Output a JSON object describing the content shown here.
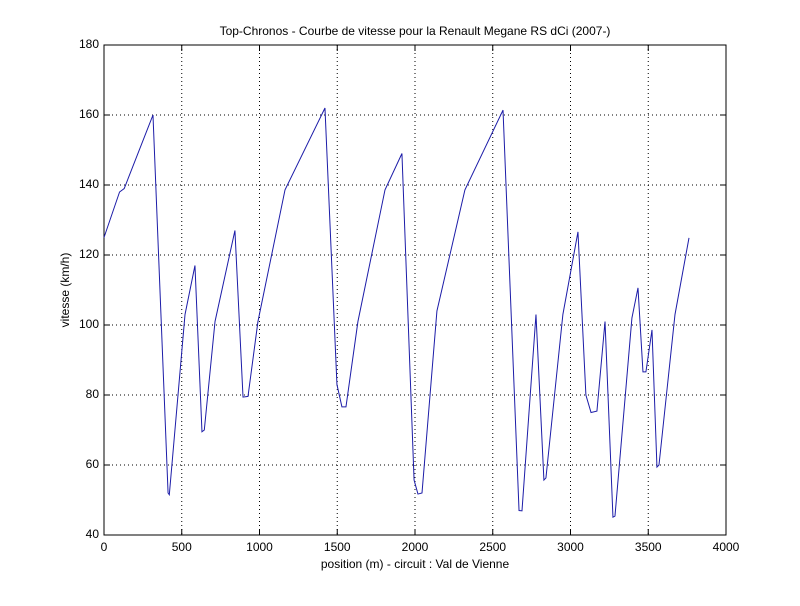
{
  "chart_data": {
    "type": "line",
    "title": "Top-Chronos - Courbe de vitesse pour la Renault Megane RS dCi (2007-)",
    "x_label": "position (m) - circuit : Val de Vienne",
    "y_label": "vitesse (km/h)",
    "x": [
      0,
      100,
      130,
      315,
      412,
      420,
      521,
      585,
      630,
      645,
      714,
      842,
      894,
      926,
      990,
      1164,
      1421,
      1498,
      1530,
      1556,
      1633,
      1807,
      1916,
      1994,
      2019,
      2045,
      2141,
      2321,
      2566,
      2669,
      2688,
      2778,
      2829,
      2842,
      2951,
      3048,
      3099,
      3132,
      3170,
      3222,
      3273,
      3286,
      3395,
      3434,
      3466,
      3485,
      3524,
      3556,
      3569,
      3672,
      3762
    ],
    "series": [
      {
        "name": "vitesse",
        "color": "#1c1ca8",
        "values": [
          125,
          138,
          139,
          160,
          52,
          51.5,
          103,
          117,
          69.5,
          70,
          101,
          127,
          79.4,
          79.6,
          101,
          138.6,
          162,
          83,
          76.6,
          76.6,
          101,
          138.6,
          149,
          55.7,
          51.7,
          52,
          104,
          138.6,
          161.4,
          47,
          46.9,
          103,
          55.7,
          56.3,
          103,
          126.6,
          80,
          75,
          75.4,
          101,
          45.1,
          45.4,
          102,
          110.6,
          86.6,
          86.6,
          98.6,
          59.4,
          60,
          103,
          124.9
        ]
      }
    ],
    "xlim": [
      0,
      4000
    ],
    "xticks": [
      0,
      500,
      1000,
      1500,
      2000,
      2500,
      3000,
      3500,
      4000
    ],
    "ylim": [
      40,
      180
    ],
    "yticks": [
      40,
      60,
      80,
      100,
      120,
      140,
      160,
      180
    ],
    "grid": true
  }
}
